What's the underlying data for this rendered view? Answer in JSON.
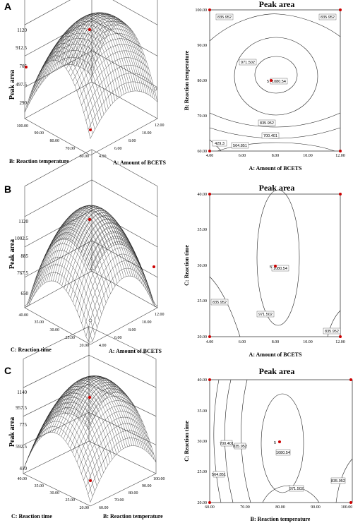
{
  "panels": [
    {
      "letter": "A",
      "surface": {
        "zlabel": "Peak area",
        "zticks": [
          "290",
          "497.5",
          "705",
          "912.5",
          "1120"
        ],
        "xlabel": "A: Amount of BCETS",
        "xticks": [
          "4.00",
          "6.00",
          "8.00",
          "10.00",
          "12.00"
        ],
        "ylabel": "B: Reaction temperature",
        "yticks": [
          "100.00",
          "90.00",
          "80.00",
          "70.00",
          "60.00"
        ]
      },
      "contour": {
        "title": "Peak area",
        "xlabel": "A: Amount of BCETS",
        "ylabel": "B: Reaction temperature",
        "xticks": [
          "4.00",
          "6.00",
          "8.00",
          "10.00",
          "12.00"
        ],
        "yticks": [
          "60.00",
          "70.00",
          "80.00",
          "90.00",
          "100.00"
        ],
        "labels": [
          "835.952",
          "835.952",
          "971.502",
          "1080.54",
          "835.952",
          "700.401",
          "564.851",
          "429.3"
        ]
      }
    },
    {
      "letter": "B",
      "surface": {
        "zlabel": "Peak area",
        "zticks": [
          "650",
          "767.5",
          "885",
          "1002.5",
          "1120"
        ],
        "xlabel": "A: Amount of BCETS",
        "xticks": [
          "4.00",
          "6.00",
          "8.00",
          "10.00",
          "12.00"
        ],
        "ylabel": "C: Reaction time",
        "yticks": [
          "40.00",
          "35.00",
          "30.00",
          "25.00",
          "20.00"
        ]
      },
      "contour": {
        "title": "Peak area",
        "xlabel": "A: Amount of BCETS",
        "ylabel": "C: Reaction time",
        "xticks": [
          "4.00",
          "6.00",
          "8.00",
          "10.00",
          "12.00"
        ],
        "yticks": [
          "20.00",
          "25.00",
          "30.00",
          "35.00",
          "40.00"
        ],
        "labels": [
          "835.952",
          "971.502",
          "1080.54",
          "835.952"
        ]
      }
    },
    {
      "letter": "C",
      "surface": {
        "zlabel": "Peak area",
        "zticks": [
          "410",
          "592.5",
          "775",
          "957.5",
          "1140"
        ],
        "xlabel": "B: Reaction temperature",
        "xticks": [
          "60.00",
          "70.00",
          "80.00",
          "90.00",
          "100.00"
        ],
        "ylabel": "C: Reaction time",
        "yticks": [
          "40.00",
          "35.00",
          "30.00",
          "25.00",
          "20.00"
        ]
      },
      "contour": {
        "title": "Peak area",
        "xlabel": "B: Reaction temperature",
        "ylabel": "C: Reaction time",
        "xticks": [
          "60.00",
          "70.00",
          "80.00",
          "90.00",
          "100.00"
        ],
        "yticks": [
          "20.00",
          "25.00",
          "30.00",
          "35.00",
          "40.00"
        ],
        "labels": [
          "564.851",
          "700.401",
          "835.952",
          "1080.54",
          "971.502",
          "835.952"
        ]
      }
    }
  ],
  "design_point_marker": "5",
  "colors": {
    "line": "#1a1a1a",
    "point": "#cc0000",
    "grid": "#555555"
  },
  "chart_data": [
    {
      "type": "surface",
      "panel": "A",
      "xlabel": "A: Amount of BCETS",
      "xlim": [
        4,
        12
      ],
      "ylabel": "B: Reaction temperature",
      "ylim": [
        60,
        100
      ],
      "zlabel": "Peak area",
      "zlim": [
        290,
        1120
      ],
      "peak": {
        "x": 8,
        "y": 80,
        "z": 1080.54
      },
      "design_points": [
        {
          "x": 8,
          "y": 80,
          "z": 1080
        },
        {
          "x": 4,
          "y": 100,
          "z": 700
        },
        {
          "x": 12,
          "y": 60,
          "z": 520
        },
        {
          "x": 4,
          "y": 60,
          "z": 290
        }
      ]
    },
    {
      "type": "contour",
      "panel": "A",
      "title": "Peak area",
      "xlabel": "A: Amount of BCETS",
      "xlim": [
        4,
        12
      ],
      "ylabel": "B: Reaction temperature",
      "ylim": [
        60,
        100
      ],
      "center": {
        "x": 8,
        "y": 82
      },
      "levels": [
        429.3,
        564.851,
        700.401,
        835.952,
        971.502
      ],
      "center_value": 1080.54,
      "design_points": [
        {
          "x": 4,
          "y": 100
        },
        {
          "x": 12,
          "y": 100
        },
        {
          "x": 8,
          "y": 80
        },
        {
          "x": 4,
          "y": 60
        },
        {
          "x": 12,
          "y": 60
        }
      ]
    },
    {
      "type": "surface",
      "panel": "B",
      "xlabel": "A: Amount of BCETS",
      "xlim": [
        4,
        12
      ],
      "ylabel": "C: Reaction time",
      "ylim": [
        20,
        40
      ],
      "zlabel": "Peak area",
      "zlim": [
        650,
        1120
      ],
      "peak": {
        "x": 8,
        "y": 30,
        "z": 1080.54
      },
      "design_points": [
        {
          "x": 8,
          "y": 30,
          "z": 1080
        },
        {
          "x": 12,
          "y": 40,
          "z": 740
        },
        {
          "x": 4,
          "y": 20,
          "z": 690
        }
      ]
    },
    {
      "type": "contour",
      "panel": "B",
      "title": "Peak area",
      "xlabel": "A: Amount of BCETS",
      "xlim": [
        4,
        12
      ],
      "ylabel": "C: Reaction time",
      "ylim": [
        20,
        40
      ],
      "center": {
        "x": 8.3,
        "y": 30
      },
      "levels": [
        835.952,
        971.502
      ],
      "center_value": 1080.54,
      "design_points": [
        {
          "x": 4,
          "y": 40
        },
        {
          "x": 12,
          "y": 40
        },
        {
          "x": 8,
          "y": 30
        },
        {
          "x": 4,
          "y": 20
        },
        {
          "x": 12,
          "y": 20
        }
      ]
    },
    {
      "type": "surface",
      "panel": "C",
      "xlabel": "B: Reaction temperature",
      "xlim": [
        60,
        100
      ],
      "ylabel": "C: Reaction time",
      "ylim": [
        20,
        40
      ],
      "zlabel": "Peak area",
      "zlim": [
        410,
        1140
      ],
      "peak": {
        "x": 80,
        "y": 30,
        "z": 1080.54
      },
      "design_points": [
        {
          "x": 80,
          "y": 30,
          "z": 1080
        },
        {
          "x": 60,
          "y": 20,
          "z": 520
        }
      ]
    },
    {
      "type": "contour",
      "panel": "C",
      "title": "Peak area",
      "xlabel": "B: Reaction temperature",
      "xlim": [
        60,
        100
      ],
      "ylabel": "C: Reaction time",
      "ylim": [
        20,
        40
      ],
      "center": {
        "x": 81,
        "y": 29
      },
      "levels": [
        564.851,
        700.401,
        835.952,
        971.502
      ],
      "center_value": 1080.54,
      "design_points": [
        {
          "x": 60,
          "y": 40
        },
        {
          "x": 100,
          "y": 40
        },
        {
          "x": 80,
          "y": 30
        },
        {
          "x": 60,
          "y": 20
        },
        {
          "x": 100,
          "y": 20
        }
      ]
    }
  ]
}
